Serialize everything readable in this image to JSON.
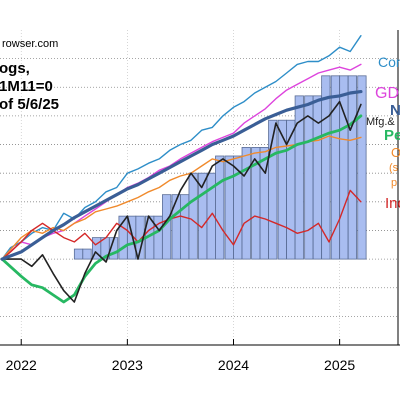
{
  "chart_data": {
    "type": "line",
    "source_text": "rowser.com",
    "notes": [
      "ogs,",
      "1M11=0",
      "of 5/6/25"
    ],
    "x_ticks": [
      "2022",
      "2023",
      "2024",
      "2025"
    ],
    "x_tick_values": [
      2022,
      2023,
      2024,
      2025
    ],
    "xlim": [
      2021.8,
      2025.55
    ],
    "ylim": [
      -0.06,
      0.16
    ],
    "bars": {
      "name": "Mfg.&",
      "color": "#a9bdf0",
      "x": [
        2022.54,
        2022.62,
        2022.71,
        2022.79,
        2022.87,
        2022.96,
        2023.04,
        2023.12,
        2023.21,
        2023.29,
        2023.37,
        2023.46,
        2023.54,
        2023.62,
        2023.71,
        2023.79,
        2023.87,
        2023.96,
        2024.04,
        2024.12,
        2024.21,
        2024.29,
        2024.37,
        2024.46,
        2024.54,
        2024.62,
        2024.71,
        2024.79,
        2024.87,
        2024.96,
        2025.04,
        2025.12,
        2025.21
      ],
      "values": [
        0.007,
        0.007,
        0.015,
        0.015,
        0.015,
        0.03,
        0.03,
        0.03,
        0.03,
        0.03,
        0.045,
        0.045,
        0.045,
        0.06,
        0.06,
        0.06,
        0.072,
        0.072,
        0.072,
        0.078,
        0.078,
        0.078,
        0.097,
        0.097,
        0.097,
        0.114,
        0.114,
        0.114,
        0.128,
        0.128,
        0.128,
        0.128,
        0.128
      ]
    },
    "series": [
      {
        "name": "Con",
        "color": "#2e8ec8",
        "label_text": "Con",
        "x": [
          2021.82,
          2021.9,
          2022.0,
          2022.1,
          2022.2,
          2022.3,
          2022.4,
          2022.5,
          2022.6,
          2022.7,
          2022.8,
          2022.9,
          2023.0,
          2023.1,
          2023.2,
          2023.3,
          2023.4,
          2023.5,
          2023.6,
          2023.7,
          2023.8,
          2023.9,
          2024.0,
          2024.1,
          2024.2,
          2024.3,
          2024.4,
          2024.5,
          2024.6,
          2024.7,
          2024.8,
          2024.9,
          2025.0,
          2025.1,
          2025.2
        ],
        "values": [
          0.0,
          0.008,
          0.012,
          0.018,
          0.022,
          0.02,
          0.032,
          0.028,
          0.036,
          0.04,
          0.047,
          0.05,
          0.06,
          0.063,
          0.067,
          0.07,
          0.076,
          0.08,
          0.083,
          0.09,
          0.092,
          0.1,
          0.106,
          0.11,
          0.116,
          0.12,
          0.124,
          0.13,
          0.136,
          0.138,
          0.138,
          0.142,
          0.148,
          0.145,
          0.156
        ]
      },
      {
        "name": "GD",
        "color": "#dd44dd",
        "label_text": "GD",
        "x": [
          2021.82,
          2022.0,
          2022.1,
          2022.2,
          2022.3,
          2022.4,
          2022.5,
          2022.6,
          2022.7,
          2022.8,
          2022.9,
          2023.0,
          2023.1,
          2023.2,
          2023.3,
          2023.4,
          2023.5,
          2023.6,
          2023.7,
          2023.8,
          2023.9,
          2024.0,
          2024.1,
          2024.2,
          2024.3,
          2024.4,
          2024.5,
          2024.6,
          2024.7,
          2024.8,
          2024.9,
          2025.0,
          2025.1,
          2025.2
        ],
        "values": [
          0.0,
          0.012,
          0.01,
          0.015,
          0.018,
          0.02,
          0.025,
          0.03,
          0.035,
          0.04,
          0.045,
          0.05,
          0.053,
          0.057,
          0.062,
          0.065,
          0.07,
          0.074,
          0.078,
          0.082,
          0.085,
          0.088,
          0.095,
          0.1,
          0.105,
          0.112,
          0.118,
          0.122,
          0.126,
          0.13,
          0.132,
          0.134,
          0.132,
          0.136
        ]
      },
      {
        "name": "N",
        "color": "#3a5e96",
        "label_text": "N",
        "x": [
          2021.82,
          2022.0,
          2022.1,
          2022.2,
          2022.3,
          2022.4,
          2022.5,
          2022.6,
          2022.7,
          2022.8,
          2022.9,
          2023.0,
          2023.1,
          2023.2,
          2023.3,
          2023.4,
          2023.5,
          2023.6,
          2023.7,
          2023.8,
          2023.9,
          2024.0,
          2024.1,
          2024.2,
          2024.3,
          2024.4,
          2024.5,
          2024.6,
          2024.7,
          2024.8,
          2024.9,
          2025.0,
          2025.1,
          2025.2
        ],
        "values": [
          0.0,
          0.005,
          0.01,
          0.015,
          0.02,
          0.024,
          0.029,
          0.033,
          0.037,
          0.041,
          0.045,
          0.049,
          0.052,
          0.056,
          0.06,
          0.064,
          0.068,
          0.072,
          0.076,
          0.08,
          0.083,
          0.086,
          0.09,
          0.094,
          0.098,
          0.101,
          0.104,
          0.106,
          0.108,
          0.111,
          0.113,
          0.114,
          0.116,
          0.117
        ]
      },
      {
        "name": "Mfg.&",
        "color": "#222222",
        "label_text": "Mfg.&",
        "x": [
          2021.82,
          2022.0,
          2022.1,
          2022.2,
          2022.3,
          2022.4,
          2022.5,
          2022.6,
          2022.7,
          2022.8,
          2022.9,
          2023.0,
          2023.1,
          2023.2,
          2023.3,
          2023.4,
          2023.5,
          2023.6,
          2023.7,
          2023.8,
          2023.9,
          2024.0,
          2024.1,
          2024.2,
          2024.3,
          2024.4,
          2024.5,
          2024.6,
          2024.7,
          2024.8,
          2024.9,
          2025.0,
          2025.1,
          2025.2
        ],
        "values": [
          0.0,
          0.0,
          -0.005,
          0.003,
          -0.01,
          -0.022,
          -0.03,
          -0.01,
          0.005,
          -0.002,
          0.02,
          0.03,
          0.0,
          0.03,
          0.02,
          0.03,
          0.048,
          0.06,
          0.05,
          0.065,
          0.07,
          0.065,
          0.058,
          0.07,
          0.06,
          0.095,
          0.08,
          0.095,
          0.1,
          0.095,
          0.1,
          0.11,
          0.09,
          0.108
        ]
      },
      {
        "name": "Pe",
        "color": "#27b862",
        "label_text": "Pe",
        "x": [
          2021.82,
          2022.0,
          2022.1,
          2022.2,
          2022.3,
          2022.4,
          2022.5,
          2022.6,
          2022.7,
          2022.8,
          2022.9,
          2023.0,
          2023.1,
          2023.2,
          2023.3,
          2023.4,
          2023.5,
          2023.6,
          2023.7,
          2023.8,
          2023.9,
          2024.0,
          2024.1,
          2024.2,
          2024.3,
          2024.4,
          2024.5,
          2024.6,
          2024.7,
          2024.8,
          2024.9,
          2025.0,
          2025.1,
          2025.2
        ],
        "values": [
          0.0,
          -0.012,
          -0.018,
          -0.02,
          -0.025,
          -0.03,
          -0.025,
          -0.012,
          -0.003,
          0.002,
          0.005,
          0.01,
          0.012,
          0.016,
          0.02,
          0.028,
          0.034,
          0.04,
          0.045,
          0.05,
          0.055,
          0.058,
          0.062,
          0.066,
          0.07,
          0.074,
          0.076,
          0.08,
          0.082,
          0.085,
          0.088,
          0.09,
          0.094,
          0.1
        ]
      },
      {
        "name": "O",
        "color": "#f08a2c",
        "label_text": "O",
        "x": [
          2021.82,
          2022.0,
          2022.1,
          2022.2,
          2022.3,
          2022.4,
          2022.5,
          2022.6,
          2022.7,
          2022.8,
          2022.9,
          2023.0,
          2023.1,
          2023.2,
          2023.3,
          2023.4,
          2023.5,
          2023.6,
          2023.7,
          2023.8,
          2023.9,
          2024.0,
          2024.1,
          2024.2,
          2024.3,
          2024.4,
          2024.5,
          2024.6,
          2024.7,
          2024.8,
          2024.9,
          2025.0,
          2025.1,
          2025.2
        ],
        "values": [
          0.0,
          0.015,
          0.02,
          0.018,
          0.022,
          0.02,
          0.025,
          0.028,
          0.033,
          0.035,
          0.037,
          0.04,
          0.043,
          0.047,
          0.05,
          0.055,
          0.058,
          0.06,
          0.065,
          0.07,
          0.068,
          0.07,
          0.072,
          0.074,
          0.075,
          0.078,
          0.079,
          0.08,
          0.082,
          0.083,
          0.086,
          0.084,
          0.083,
          0.085
        ]
      },
      {
        "name": "Ind",
        "color": "#d42828",
        "label_text": "Ind",
        "x": [
          2021.82,
          2021.9,
          2022.0,
          2022.1,
          2022.2,
          2022.3,
          2022.4,
          2022.5,
          2022.6,
          2022.7,
          2022.8,
          2022.9,
          2023.0,
          2023.1,
          2023.2,
          2023.3,
          2023.4,
          2023.5,
          2023.6,
          2023.7,
          2023.8,
          2023.9,
          2024.0,
          2024.1,
          2024.2,
          2024.3,
          2024.4,
          2024.5,
          2024.6,
          2024.7,
          2024.8,
          2024.9,
          2025.0,
          2025.1,
          2025.2
        ],
        "values": [
          0.0,
          0.005,
          0.012,
          0.02,
          0.025,
          0.02,
          0.015,
          0.012,
          0.018,
          0.01,
          0.015,
          0.025,
          0.02,
          0.012,
          0.02,
          0.025,
          0.028,
          0.03,
          0.028,
          0.022,
          0.032,
          0.02,
          0.01,
          0.025,
          0.03,
          0.028,
          0.025,
          0.022,
          0.018,
          0.02,
          0.025,
          0.012,
          0.028,
          0.048,
          0.04
        ]
      }
    ],
    "extra_labels": [
      {
        "text": "(s",
        "color": "#f08a2c"
      },
      {
        "text": "p",
        "color": "#f08a2c"
      }
    ]
  }
}
